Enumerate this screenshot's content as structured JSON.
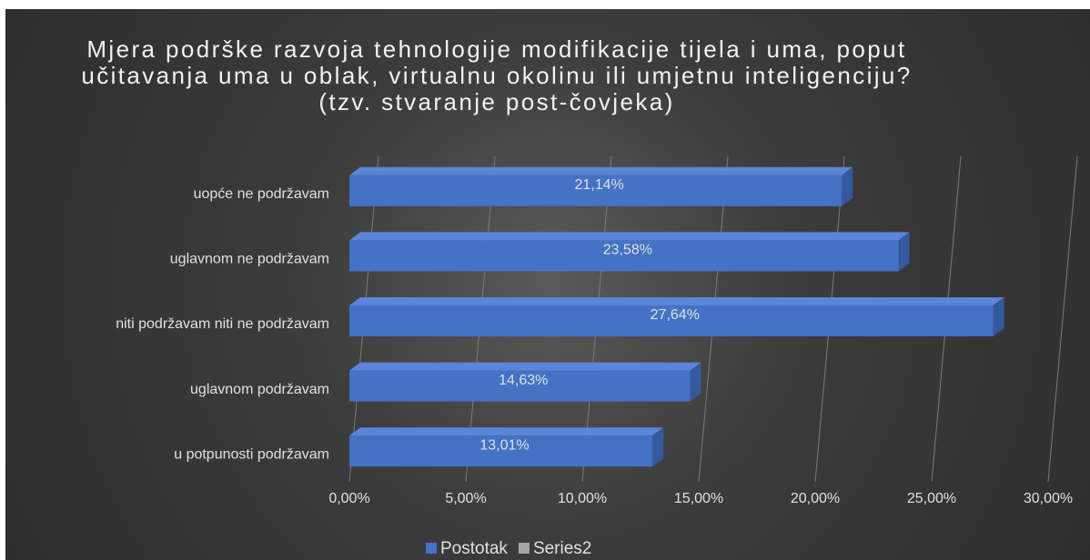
{
  "chart_data": {
    "type": "bar",
    "orientation": "horizontal",
    "title": "Mjera podrške razvoja tehnologije modifikacije tijela i uma, poput učitavanja uma u oblak, virtualnu okolinu ili umjetnu inteligenciju? (tzv. stvaranje post-čovjeka)",
    "categories": [
      "uopće ne podržavam",
      "uglavnom ne podržavam",
      "niti podržavam niti ne podržavam",
      "uglavnom podržavam",
      "u potpunosti podržavam"
    ],
    "series": [
      {
        "name": "Postotak",
        "color": "#4472c4",
        "values": [
          21.14,
          23.58,
          27.64,
          14.63,
          13.01
        ],
        "value_labels": [
          "21,14%",
          "23,58%",
          "27,64%",
          "14,63%",
          "13,01%"
        ]
      },
      {
        "name": "Series2",
        "color": "#a5a5a5",
        "values": [
          null,
          null,
          null,
          null,
          null
        ]
      }
    ],
    "xlim": [
      0,
      30
    ],
    "xticks": [
      {
        "value": 0,
        "label": "0,00%"
      },
      {
        "value": 5,
        "label": "5,00%"
      },
      {
        "value": 10,
        "label": "10,00%"
      },
      {
        "value": 15,
        "label": "15,00%"
      },
      {
        "value": 20,
        "label": "20,00%"
      },
      {
        "value": 25,
        "label": "25,00%"
      },
      {
        "value": 30,
        "label": "30,00%"
      }
    ],
    "grid": true,
    "legend": "bottom"
  }
}
